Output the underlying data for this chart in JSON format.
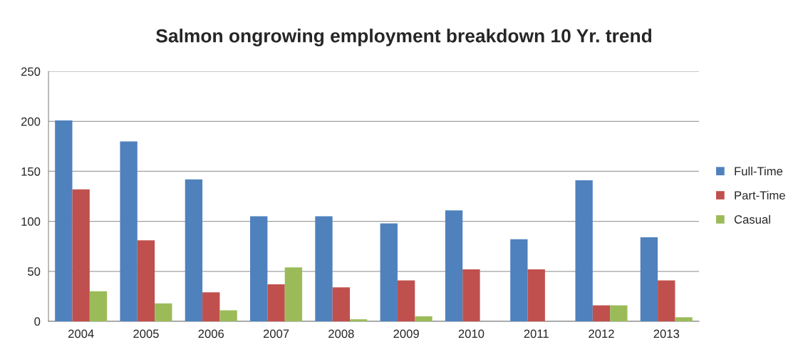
{
  "chart_data": {
    "type": "bar",
    "title": "Salmon ongrowing employment breakdown 10 Yr. trend",
    "categories": [
      "2004",
      "2005",
      "2006",
      "2007",
      "2008",
      "2009",
      "2010",
      "2011",
      "2012",
      "2013"
    ],
    "series": [
      {
        "name": "Full-Time",
        "color": "#4f81bd",
        "values": [
          201,
          180,
          142,
          105,
          105,
          98,
          111,
          82,
          141,
          84
        ]
      },
      {
        "name": "Part-Time",
        "color": "#c0504d",
        "values": [
          132,
          81,
          29,
          37,
          34,
          41,
          52,
          52,
          16,
          41
        ]
      },
      {
        "name": "Casual",
        "color": "#9bbb59",
        "values": [
          30,
          18,
          11,
          54,
          2,
          5,
          0,
          0,
          16,
          4
        ]
      }
    ],
    "ylim": [
      0,
      250
    ],
    "yticks": [
      0,
      50,
      100,
      150,
      200,
      250
    ],
    "grid": "y",
    "legend": "right"
  }
}
